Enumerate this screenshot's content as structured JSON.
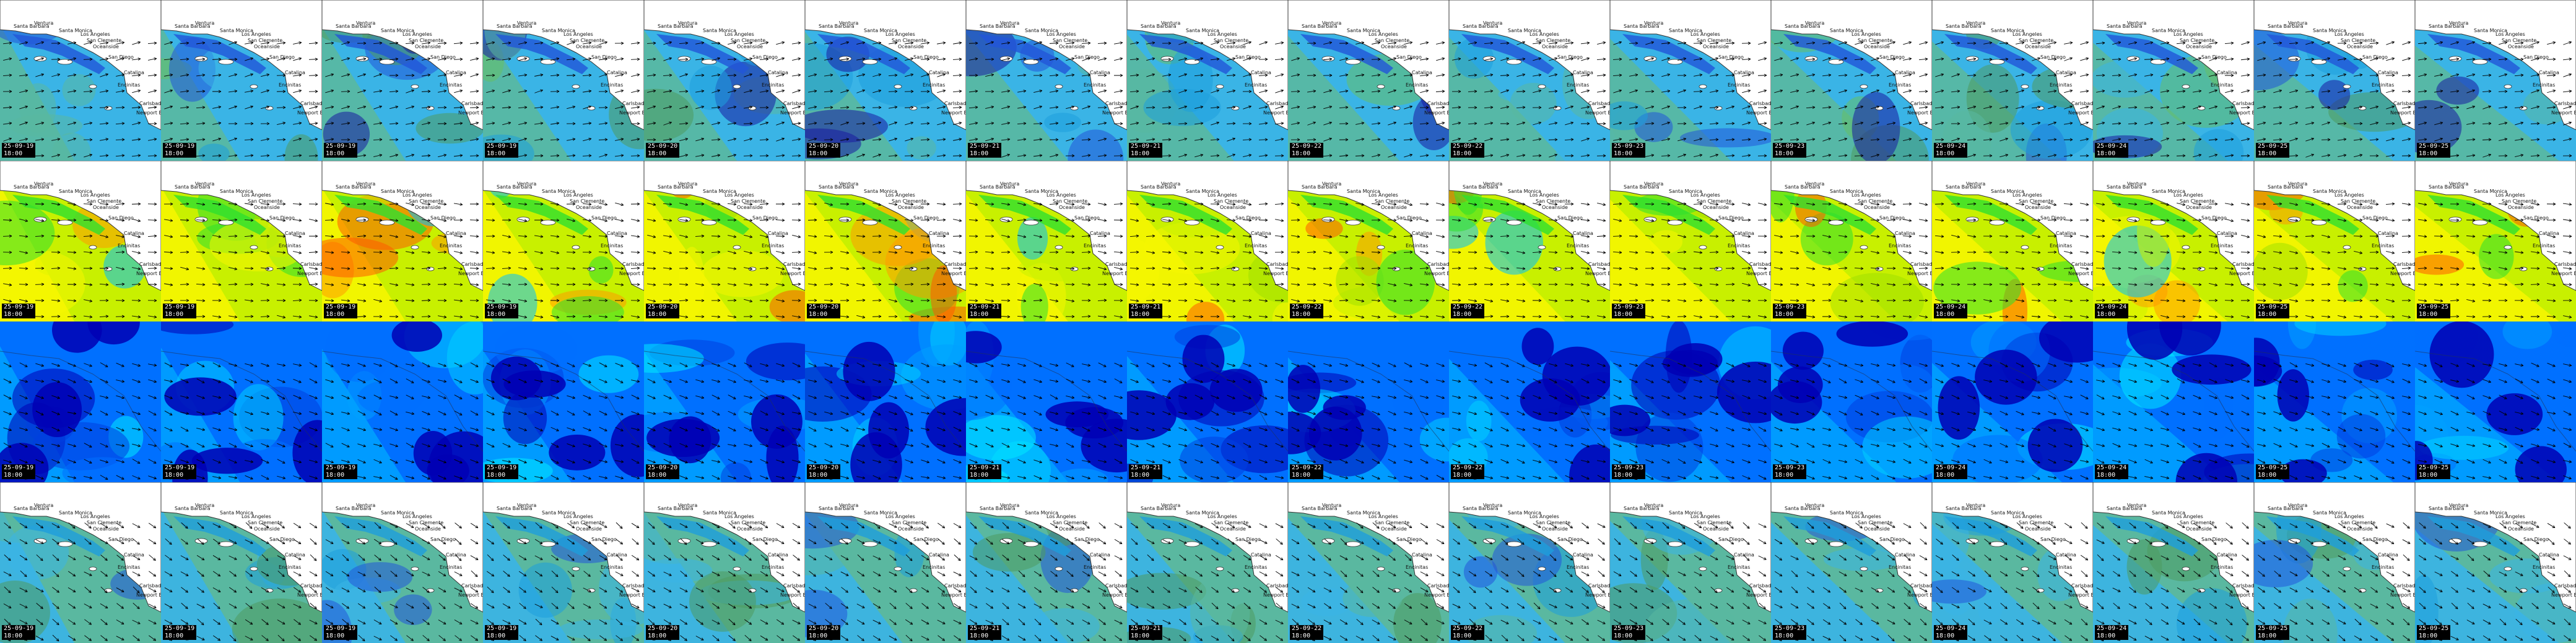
{
  "palettes": {
    "wind": [
      "#2255d8",
      "#1e9edc",
      "#3ab4e6",
      "#5ab8a0",
      "#4f9a60",
      "#66c066",
      "#1a1aa0"
    ],
    "period": [
      "#f5f500",
      "#c8f000",
      "#a0e000",
      "#2ee02e",
      "#ff9a00",
      "#ff5a00",
      "#00c0ff"
    ],
    "height": [
      "#0000b4",
      "#0040e0",
      "#0070ff",
      "#00a0ff",
      "#00d0ff",
      "#00eaff"
    ],
    "swell": [
      "#5ab8a0",
      "#3ab4e6",
      "#1e9edc",
      "#2255d8",
      "#4f9a60"
    ]
  },
  "places": [
    "Santa Barbara",
    "Ventura",
    "Santa Monica",
    "Los Angeles",
    "San Clemente",
    "Oceanside",
    "San Diego",
    "Catalina",
    "Encinitas",
    "Carlsbad",
    "Newport Bch"
  ],
  "rows": [
    {
      "kind": "wind",
      "base": "#3ab4e6",
      "tint": "#5ab8a0",
      "dark": "#2255d8",
      "coast": true
    },
    {
      "kind": "period",
      "base": "#c8f000",
      "tint": "#f5f500",
      "dark": "#2ee02e",
      "coast": true
    },
    {
      "kind": "height",
      "base": "#0070ff",
      "tint": "#00a0ff",
      "dark": "#0000b4",
      "coast": false
    },
    {
      "kind": "swell",
      "base": "#5ab8a0",
      "tint": "#3ab4e6",
      "dark": "#1e9edc",
      "coast": true
    }
  ],
  "columns": [
    {
      "date": "25-09-19",
      "time": "18:00"
    },
    {
      "date": "25-09-19",
      "time": "18:00"
    },
    {
      "date": "25-09-19",
      "time": "18:00"
    },
    {
      "date": "25-09-19",
      "time": "18:00"
    },
    {
      "date": "25-09-20",
      "time": "18:00"
    },
    {
      "date": "25-09-20",
      "time": "18:00"
    },
    {
      "date": "25-09-21",
      "time": "18:00"
    },
    {
      "date": "25-09-21",
      "time": "18:00"
    },
    {
      "date": "25-09-22",
      "time": "18:00"
    },
    {
      "date": "25-09-22",
      "time": "18:00"
    },
    {
      "date": "25-09-23",
      "time": "18:00"
    },
    {
      "date": "25-09-23",
      "time": "18:00"
    },
    {
      "date": "25-09-24",
      "time": "18:00"
    },
    {
      "date": "25-09-24",
      "time": "18:00"
    },
    {
      "date": "25-09-25",
      "time": "18:00"
    },
    {
      "date": "25-09-25",
      "time": "18:00"
    }
  ]
}
